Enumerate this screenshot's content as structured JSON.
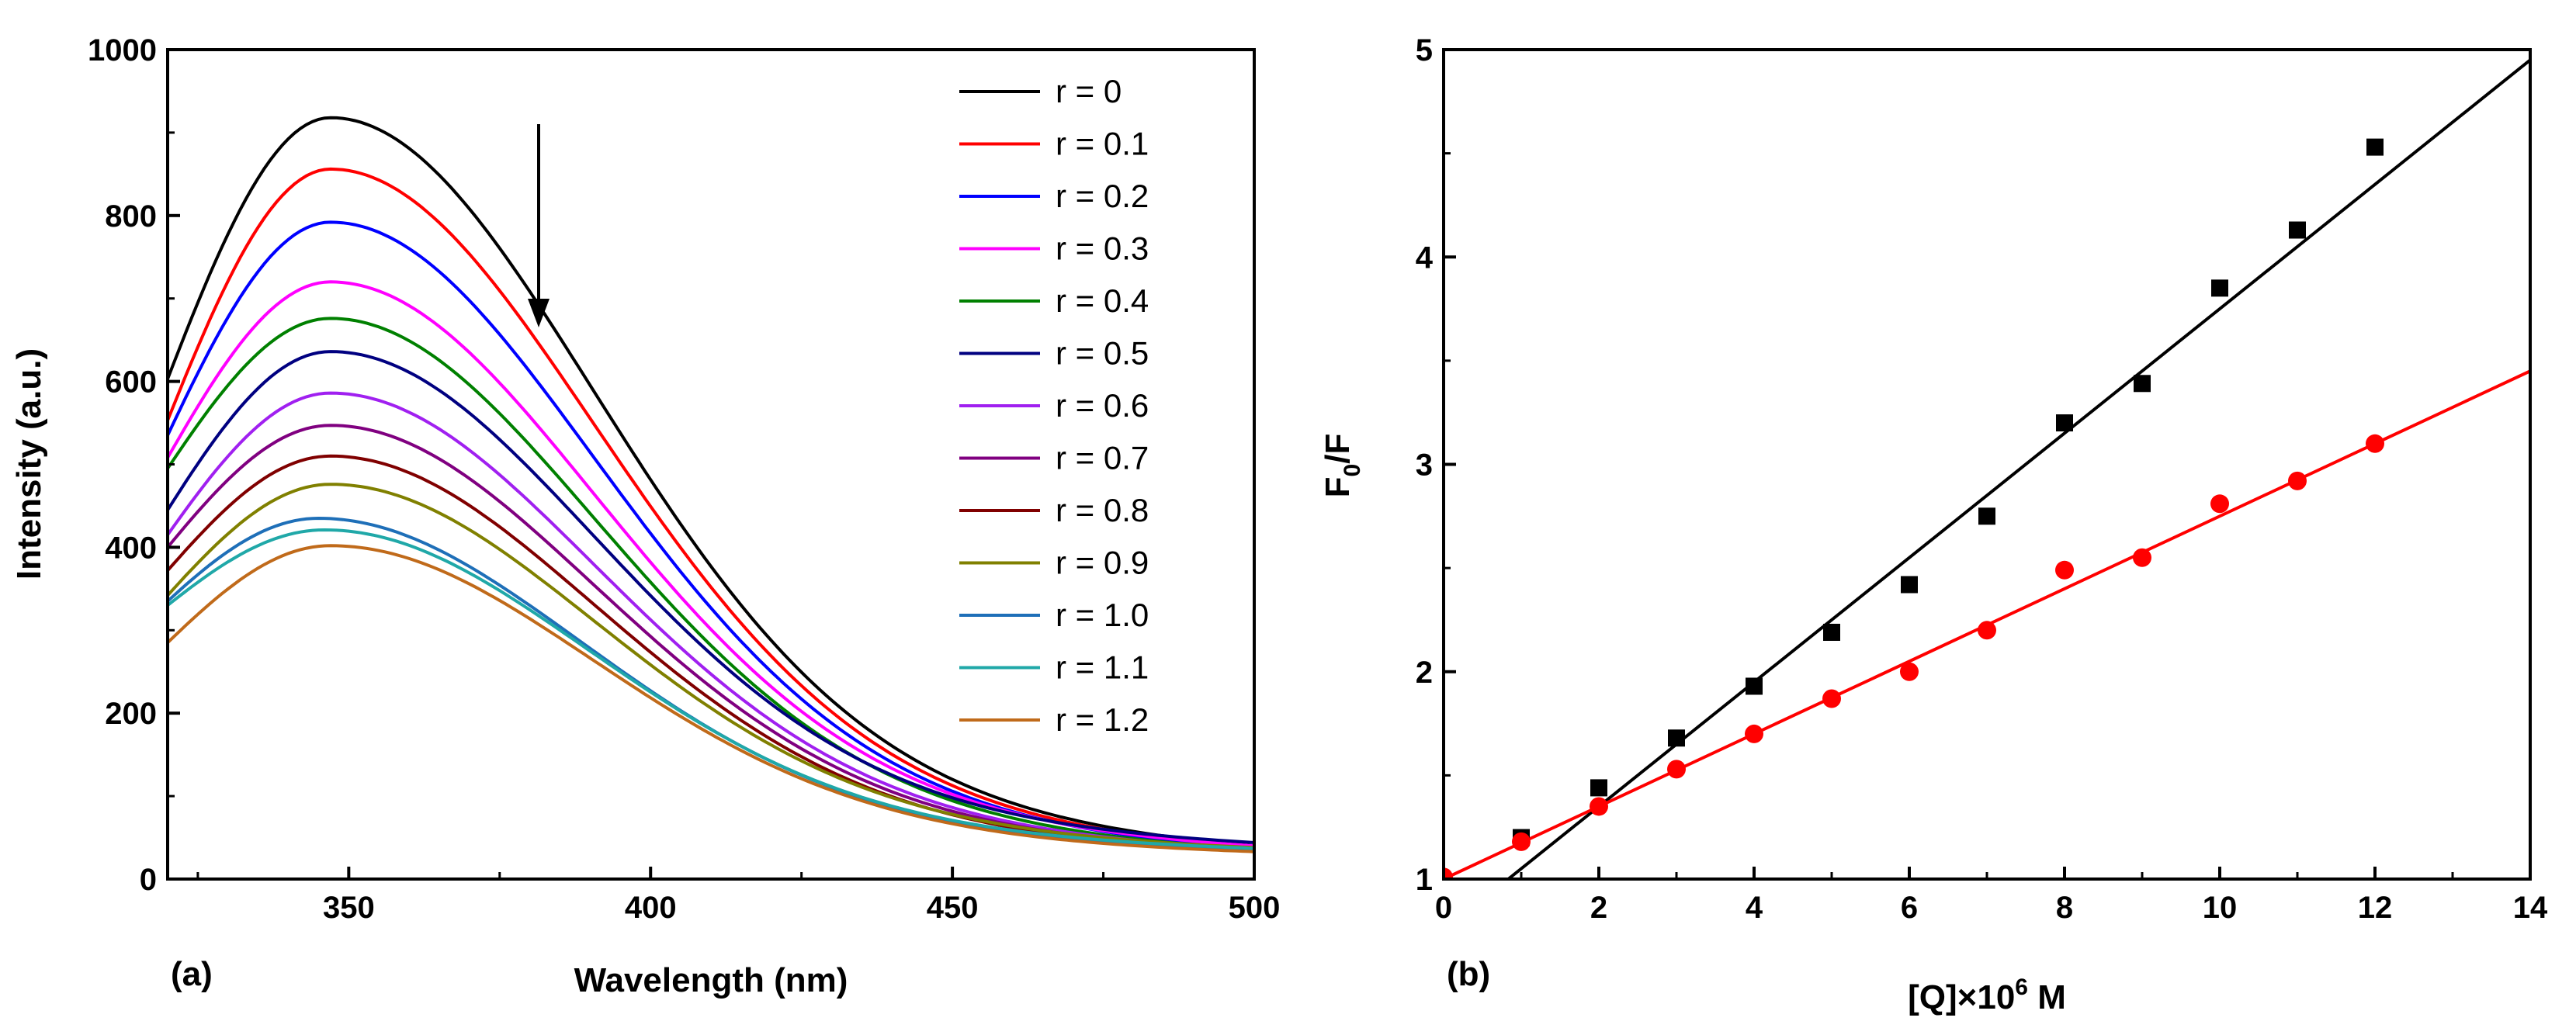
{
  "chart_data": [
    {
      "type": "line",
      "panel_label": "(a)",
      "xlabel": "Wavelength (nm)",
      "ylabel": "Intensity (a.u.)",
      "xlim": [
        320,
        500
      ],
      "ylim": [
        0,
        1000
      ],
      "xticks": [
        350,
        400,
        450,
        500
      ],
      "yticks": [
        0,
        200,
        400,
        600,
        800,
        1000
      ],
      "legend_position": "top-right",
      "annotation": "downward arrow near 380 nm indicating decreasing intensity with r",
      "series": [
        {
          "name": "r = 0",
          "color": "#000000",
          "peak_x": 347,
          "peak": 918,
          "start": 603,
          "end": 40
        },
        {
          "name": "r = 0.1",
          "color": "#ff0000",
          "peak_x": 347,
          "peak": 856,
          "start": 553,
          "end": 38
        },
        {
          "name": "r = 0.2",
          "color": "#0000ff",
          "peak_x": 347,
          "peak": 792,
          "start": 535,
          "end": 37
        },
        {
          "name": "r = 0.3",
          "color": "#ff00ff",
          "peak_x": 347,
          "peak": 720,
          "start": 508,
          "end": 40
        },
        {
          "name": "r = 0.4",
          "color": "#008000",
          "peak_x": 347,
          "peak": 676,
          "start": 495,
          "end": 36
        },
        {
          "name": "r = 0.5",
          "color": "#000080",
          "peak_x": 347,
          "peak": 636,
          "start": 445,
          "end": 44
        },
        {
          "name": "r = 0.6",
          "color": "#a020f0",
          "peak_x": 347,
          "peak": 586,
          "start": 415,
          "end": 36
        },
        {
          "name": "r = 0.7",
          "color": "#800080",
          "peak_x": 347,
          "peak": 547,
          "start": 400,
          "end": 35
        },
        {
          "name": "r = 0.8",
          "color": "#800000",
          "peak_x": 347,
          "peak": 510,
          "start": 372,
          "end": 34
        },
        {
          "name": "r = 0.9",
          "color": "#808000",
          "peak_x": 347,
          "peak": 476,
          "start": 342,
          "end": 38
        },
        {
          "name": "r = 1.0",
          "color": "#1e6fb8",
          "peak_x": 345,
          "peak": 435,
          "start": 335,
          "end": 36
        },
        {
          "name": "r = 1.1",
          "color": "#20a8a8",
          "peak_x": 346,
          "peak": 421,
          "start": 330,
          "end": 37
        },
        {
          "name": "r = 1.2",
          "color": "#c06a1a",
          "peak_x": 347,
          "peak": 402,
          "start": 285,
          "end": 33
        }
      ]
    },
    {
      "type": "scatter",
      "panel_label": "(b)",
      "xlabel": "[Q]×10⁶ M",
      "ylabel": "F₀/F",
      "xlim": [
        0,
        14
      ],
      "ylim": [
        1,
        5
      ],
      "xticks": [
        0,
        2,
        4,
        6,
        8,
        10,
        12,
        14
      ],
      "yticks": [
        1,
        2,
        3,
        4,
        5
      ],
      "series": [
        {
          "name": "black squares",
          "marker": "square",
          "color": "#000000",
          "x": [
            1,
            2,
            3,
            4,
            5,
            6,
            7,
            8,
            9,
            10,
            11,
            12
          ],
          "y": [
            1.2,
            1.44,
            1.68,
            1.93,
            2.19,
            2.42,
            2.75,
            3.2,
            3.39,
            3.85,
            4.13,
            4.53
          ],
          "fit": {
            "slope": 0.3,
            "intercept": 0.75
          }
        },
        {
          "name": "red circles",
          "marker": "circle",
          "color": "#ff0000",
          "x": [
            0,
            1,
            2,
            3,
            4,
            5,
            6,
            7,
            8,
            9,
            10,
            11,
            12
          ],
          "y": [
            1.01,
            1.18,
            1.35,
            1.53,
            1.7,
            1.87,
            2.0,
            2.2,
            2.49,
            2.55,
            2.81,
            2.92,
            3.1
          ],
          "fit": {
            "slope": 0.175,
            "intercept": 1.0
          }
        }
      ]
    }
  ]
}
